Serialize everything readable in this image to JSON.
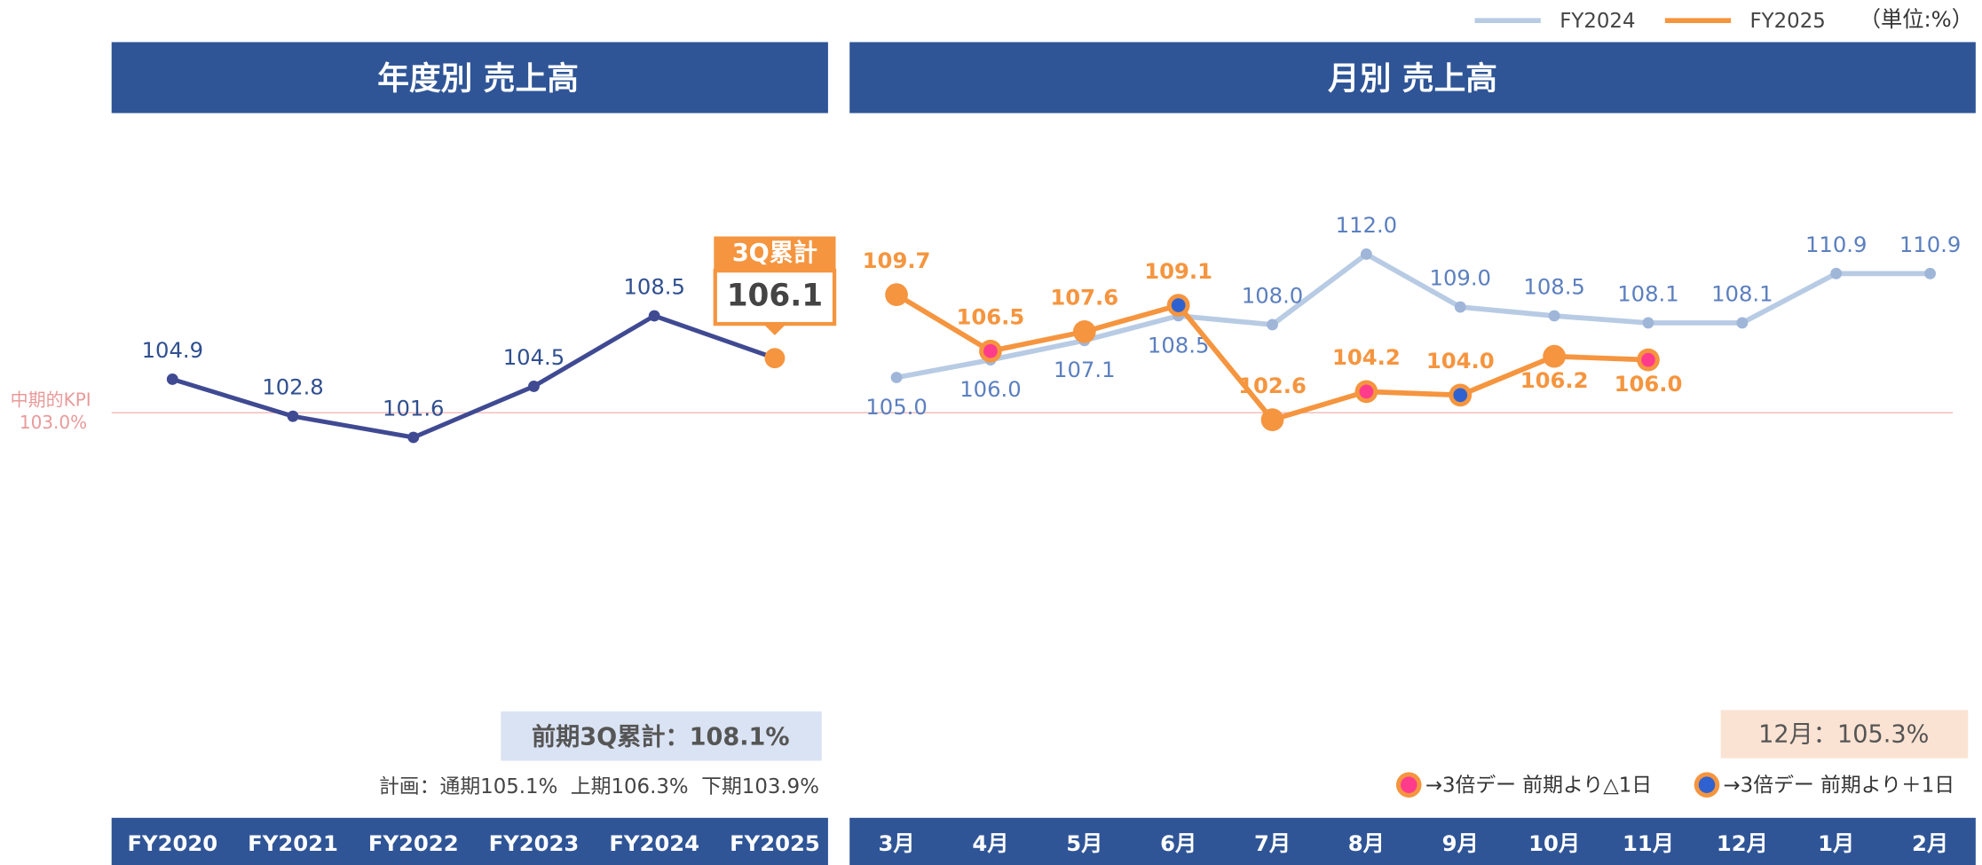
{
  "chart_data": [
    {
      "type": "line",
      "title": "年度別 売上高",
      "categories": [
        "FY2020",
        "FY2021",
        "FY2022",
        "FY2023",
        "FY2024",
        "FY2025"
      ],
      "values": [
        104.9,
        102.8,
        101.6,
        104.5,
        108.5,
        106.1
      ],
      "color": "#3f4a92",
      "last_point_color": "#f5953f",
      "callout": {
        "label": "3Q累計"
      },
      "ylim": [
        95,
        115
      ],
      "kpi": {
        "label": "中期的KPI",
        "value": 103,
        "value_label": "103.0%",
        "color": "#f2b8b8"
      },
      "annotations": [
        "前期3Q累計：108.1%",
        "計画：通期105.1%  上期106.3%  下期103.9%"
      ]
    },
    {
      "type": "line",
      "title": "月別 売上高",
      "categories": [
        "3月",
        "4月",
        "5月",
        "6月",
        "7月",
        "8月",
        "9月",
        "10月",
        "11月",
        "12月",
        "1月",
        "2月"
      ],
      "series": [
        {
          "name": "FY2024",
          "color": "#b8cbe4",
          "values": [
            105.0,
            106.0,
            107.1,
            108.5,
            108.0,
            112.0,
            109.0,
            108.5,
            108.1,
            108.1,
            110.9,
            110.9
          ],
          "value_labels": [
            "105.0",
            "106.0",
            "107.1",
            "108.5",
            "108.0",
            "112.0",
            "109.0",
            "108.5",
            "108.1",
            "108.1",
            "110.9",
            "110.9"
          ]
        },
        {
          "name": "FY2025",
          "color": "#f5953f",
          "values": [
            109.7,
            106.5,
            107.6,
            109.1,
            102.6,
            104.2,
            104.0,
            106.2,
            106.0,
            null,
            null,
            null
          ],
          "value_labels": [
            "109.7",
            "106.5",
            "107.6",
            "109.1",
            "102.6",
            "104.2",
            "104.0",
            "106.2",
            "106.0",
            null,
            null,
            null
          ]
        }
      ],
      "ylim": [
        95,
        115
      ],
      "unit": "（単位:%）",
      "highlights": [
        {
          "label": "→3倍デー 前期より△1日",
          "color": "#ff3c8c",
          "indices": [
            1,
            5,
            8
          ]
        },
        {
          "label": "→3倍デー 前期より＋1日",
          "color": "#2f62d0",
          "indices": [
            3,
            6
          ]
        }
      ],
      "annotations": [
        "12月：105.3%"
      ]
    }
  ]
}
